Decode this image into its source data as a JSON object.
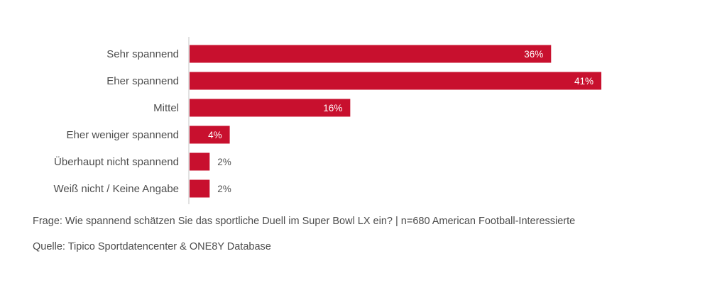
{
  "chart_data": {
    "type": "bar",
    "orientation": "horizontal",
    "title": "",
    "xlabel": "",
    "ylabel": "",
    "categories": [
      "Sehr spannend",
      "Eher spannend",
      "Mittel",
      "Eher weniger spannend",
      "Überhaupt nicht spannend",
      "Weiß nicht / Keine Angabe"
    ],
    "values": [
      36,
      41,
      16,
      4,
      2,
      2
    ],
    "value_labels": [
      "36%",
      "41%",
      "16%",
      "4%",
      "2%",
      "2%"
    ],
    "unit": "%",
    "xlim": [
      0,
      41
    ],
    "grid": false,
    "legend": "none",
    "bar_color": "#c8102e"
  },
  "notes": {
    "question": "Frage: Wie spannend schätzen Sie das sportliche Duell im Super Bowl LX ein? | n=680 American Football-Interessierte",
    "source": "Quelle: Tipico Sportdatencenter & ONE8Y Database"
  }
}
